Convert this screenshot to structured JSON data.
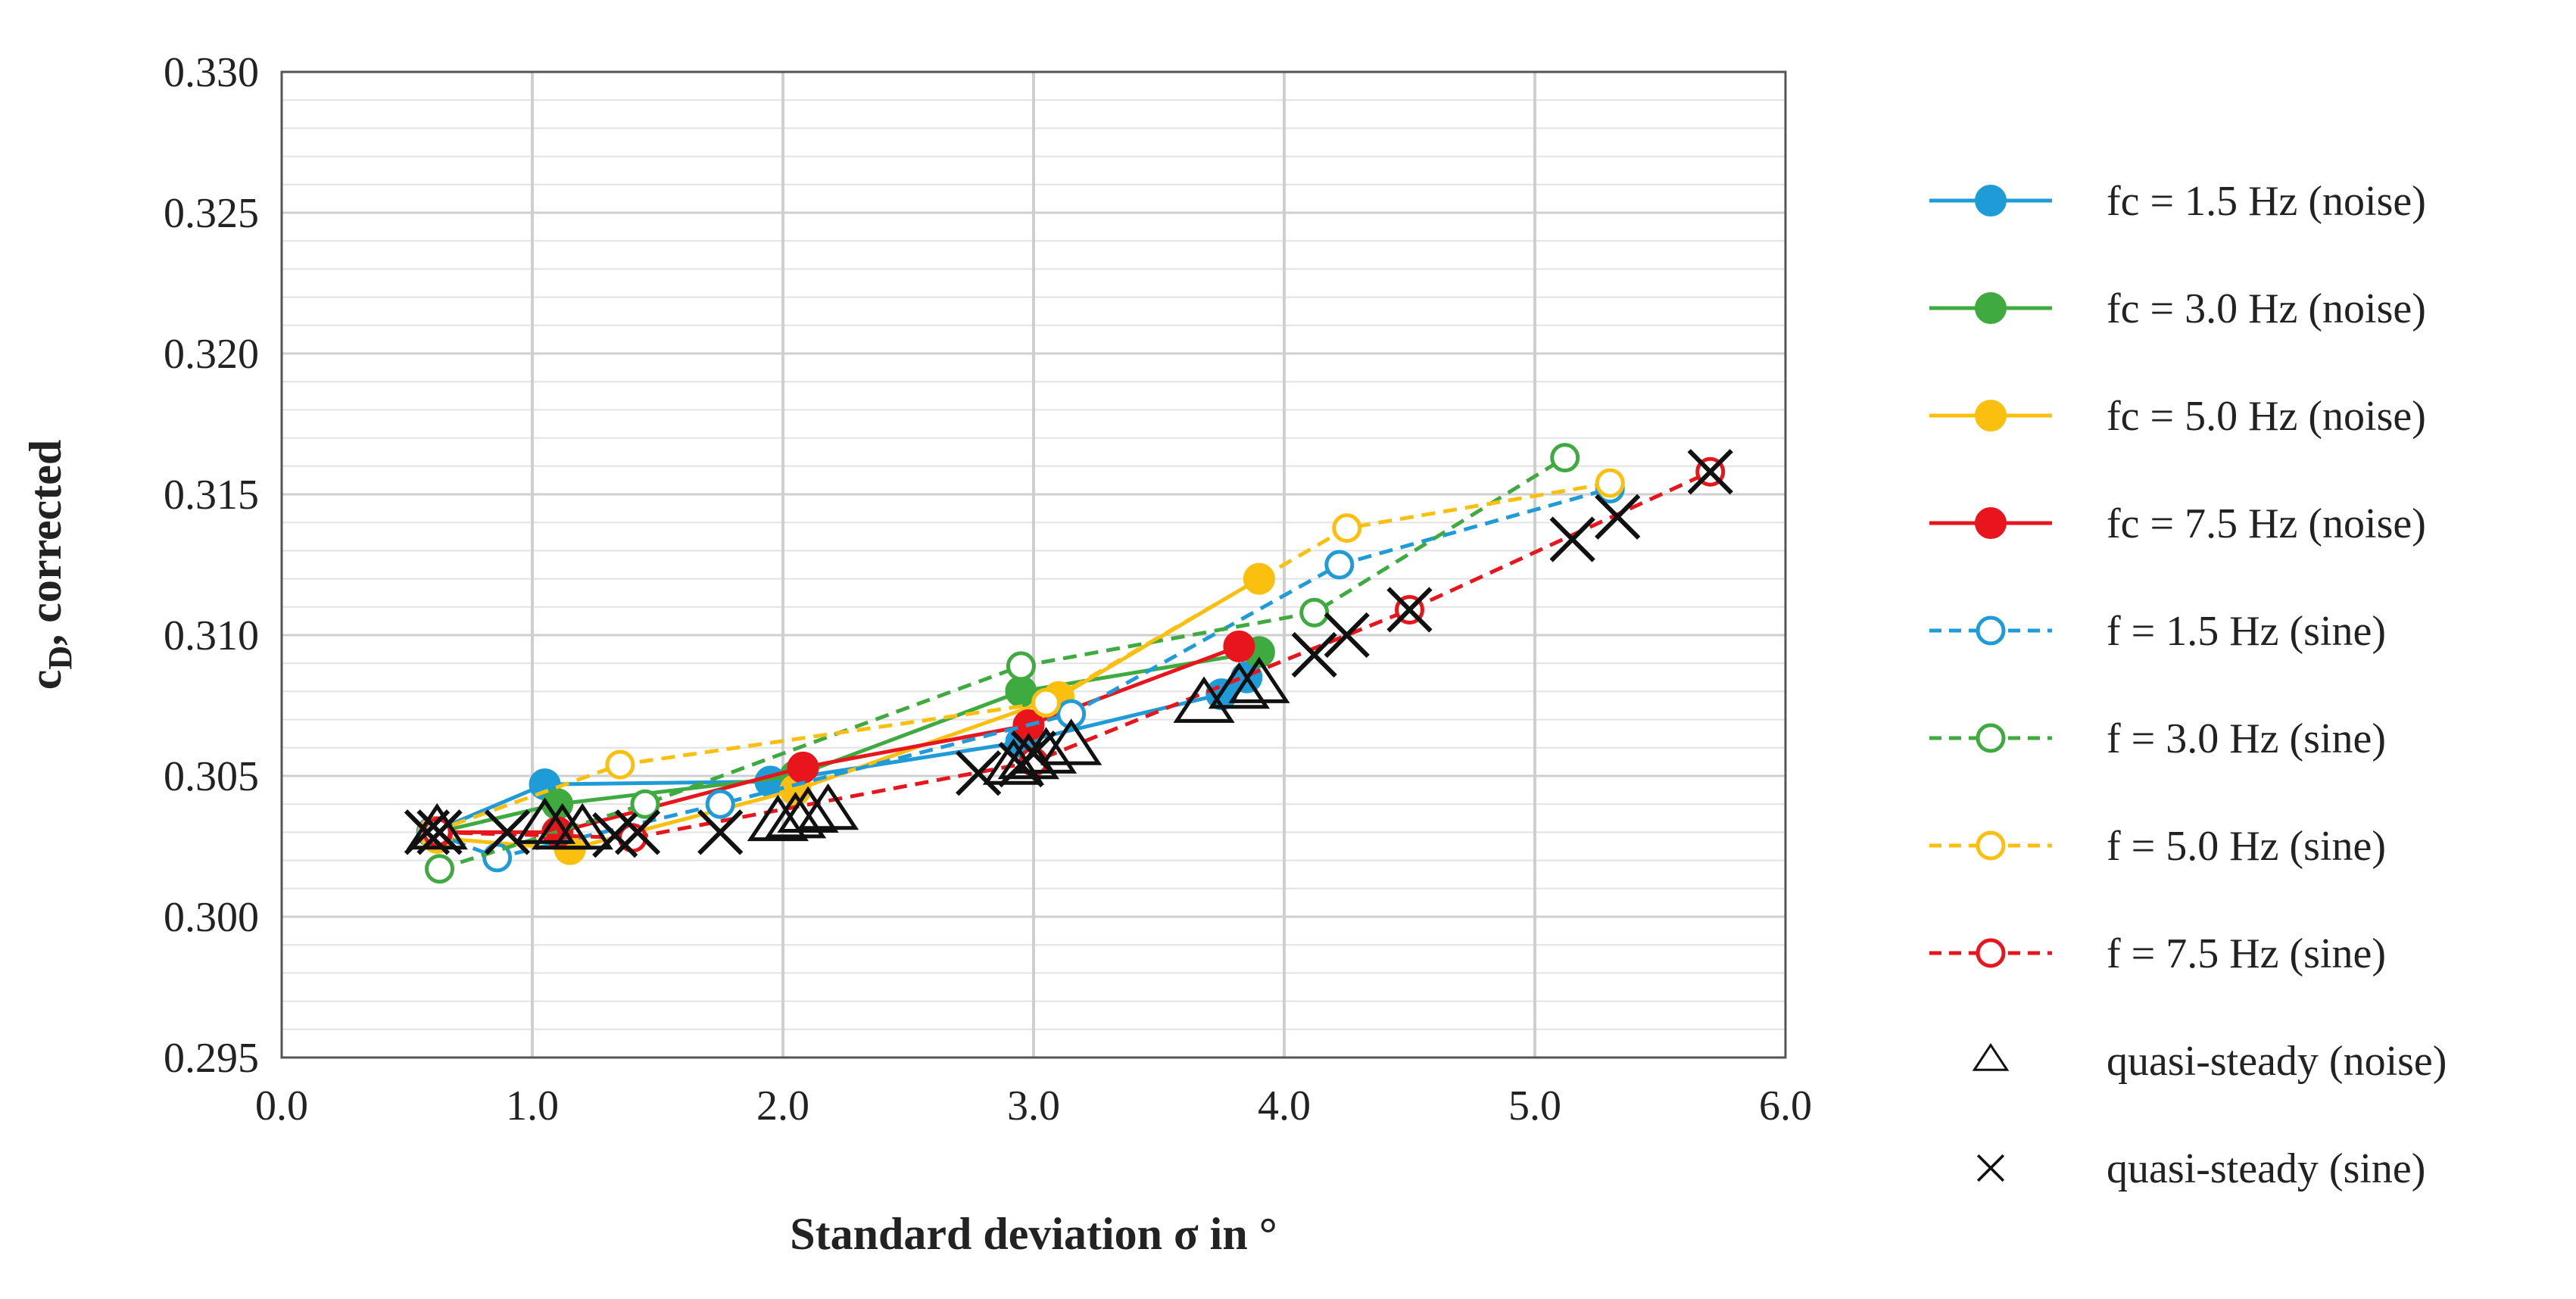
{
  "chart_data": {
    "type": "line",
    "title": "",
    "xlabel": "Standard deviation σ in °",
    "ylabel_main": "c",
    "ylabel_sub": "D",
    "ylabel_rest": ", corrected",
    "xlim": [
      0.0,
      6.0
    ],
    "ylim": [
      0.295,
      0.33
    ],
    "x_ticks": [
      "0.0",
      "1.0",
      "2.0",
      "3.0",
      "4.0",
      "5.0",
      "6.0"
    ],
    "y_ticks": [
      "0.295",
      "0.300",
      "0.305",
      "0.310",
      "0.315",
      "0.320",
      "0.325",
      "0.330"
    ],
    "x_major_step": 1.0,
    "y_minor_step": 0.001,
    "grid": "major vertical and minor horizontal gridlines",
    "legend_position": "right",
    "series": [
      {
        "name": "fc = 1.5 Hz (noise)",
        "color": "#1f9bd8",
        "line": "solid",
        "marker": "filled-circle",
        "x": [
          0.6,
          1.05,
          1.95,
          2.95,
          3.75,
          3.85
        ],
        "y": [
          0.303,
          0.3047,
          0.3048,
          0.3062,
          0.3079,
          0.3085
        ]
      },
      {
        "name": "fc = 3.0 Hz (noise)",
        "color": "#3faa3f",
        "line": "solid",
        "marker": "filled-circle",
        "x": [
          0.62,
          1.1,
          2.05,
          2.95,
          3.9
        ],
        "y": [
          0.303,
          0.304,
          0.305,
          0.308,
          0.3094
        ]
      },
      {
        "name": "fc = 5.0 Hz (noise)",
        "color": "#fbbf0f",
        "line": "solid",
        "marker": "filled-circle",
        "x": [
          0.62,
          1.15,
          2.05,
          3.1,
          3.9
        ],
        "y": [
          0.3028,
          0.3024,
          0.3045,
          0.3078,
          0.312
        ]
      },
      {
        "name": "fc = 7.5 Hz (noise)",
        "color": "#e8161c",
        "line": "solid",
        "marker": "filled-circle",
        "x": [
          0.62,
          1.1,
          2.08,
          2.98,
          3.82
        ],
        "y": [
          0.303,
          0.303,
          0.3053,
          0.3068,
          0.3096
        ]
      },
      {
        "name": "f = 1.5 Hz (sine)",
        "color": "#1f9bd8",
        "line": "dashed",
        "marker": "open-circle",
        "x": [
          0.6,
          0.86,
          1.75,
          3.15,
          4.22,
          5.3
        ],
        "y": [
          0.303,
          0.3021,
          0.304,
          0.3072,
          0.3125,
          0.3152
        ]
      },
      {
        "name": "f = 3.0 Hz (sine)",
        "color": "#3faa3f",
        "line": "dashed",
        "marker": "open-circle",
        "x": [
          0.63,
          1.45,
          2.95,
          4.12,
          5.12
        ],
        "y": [
          0.3017,
          0.304,
          0.3089,
          0.3108,
          0.3163
        ]
      },
      {
        "name": "f = 5.0 Hz (sine)",
        "color": "#fbbf0f",
        "line": "dashed",
        "marker": "open-circle",
        "x": [
          0.6,
          1.35,
          3.05,
          4.25,
          5.3
        ],
        "y": [
          0.303,
          0.3054,
          0.3076,
          0.3138,
          0.3154
        ]
      },
      {
        "name": "f = 7.5 Hz (sine)",
        "color": "#e8161c",
        "line": "dashed",
        "marker": "open-circle",
        "x": [
          0.62,
          1.4,
          3.0,
          4.5,
          5.7
        ],
        "y": [
          0.303,
          0.3028,
          0.3055,
          0.3109,
          0.3158
        ]
      },
      {
        "name": "quasi-steady (noise)",
        "color": "#111111",
        "line": "none",
        "marker": "triangle",
        "x": [
          0.62,
          1.05,
          1.12,
          1.2,
          1.98,
          2.05,
          2.1,
          2.18,
          2.92,
          2.98,
          3.05,
          3.15,
          3.68,
          3.82,
          3.9
        ],
        "y": [
          0.303,
          0.3032,
          0.303,
          0.303,
          0.3033,
          0.3034,
          0.3036,
          0.3037,
          0.3053,
          0.3055,
          0.3057,
          0.306,
          0.3075,
          0.308,
          0.3082
        ]
      },
      {
        "name": "quasi-steady (sine)",
        "color": "#111111",
        "line": "none",
        "marker": "cross",
        "x": [
          0.58,
          0.63,
          0.9,
          1.33,
          1.42,
          1.75,
          2.78,
          2.95,
          3.0,
          4.12,
          4.25,
          4.5,
          5.15,
          5.33,
          5.7
        ],
        "y": [
          0.303,
          0.303,
          0.303,
          0.3029,
          0.303,
          0.303,
          0.3051,
          0.3054,
          0.3058,
          0.3093,
          0.31,
          0.3109,
          0.3134,
          0.3142,
          0.3158
        ]
      }
    ]
  }
}
